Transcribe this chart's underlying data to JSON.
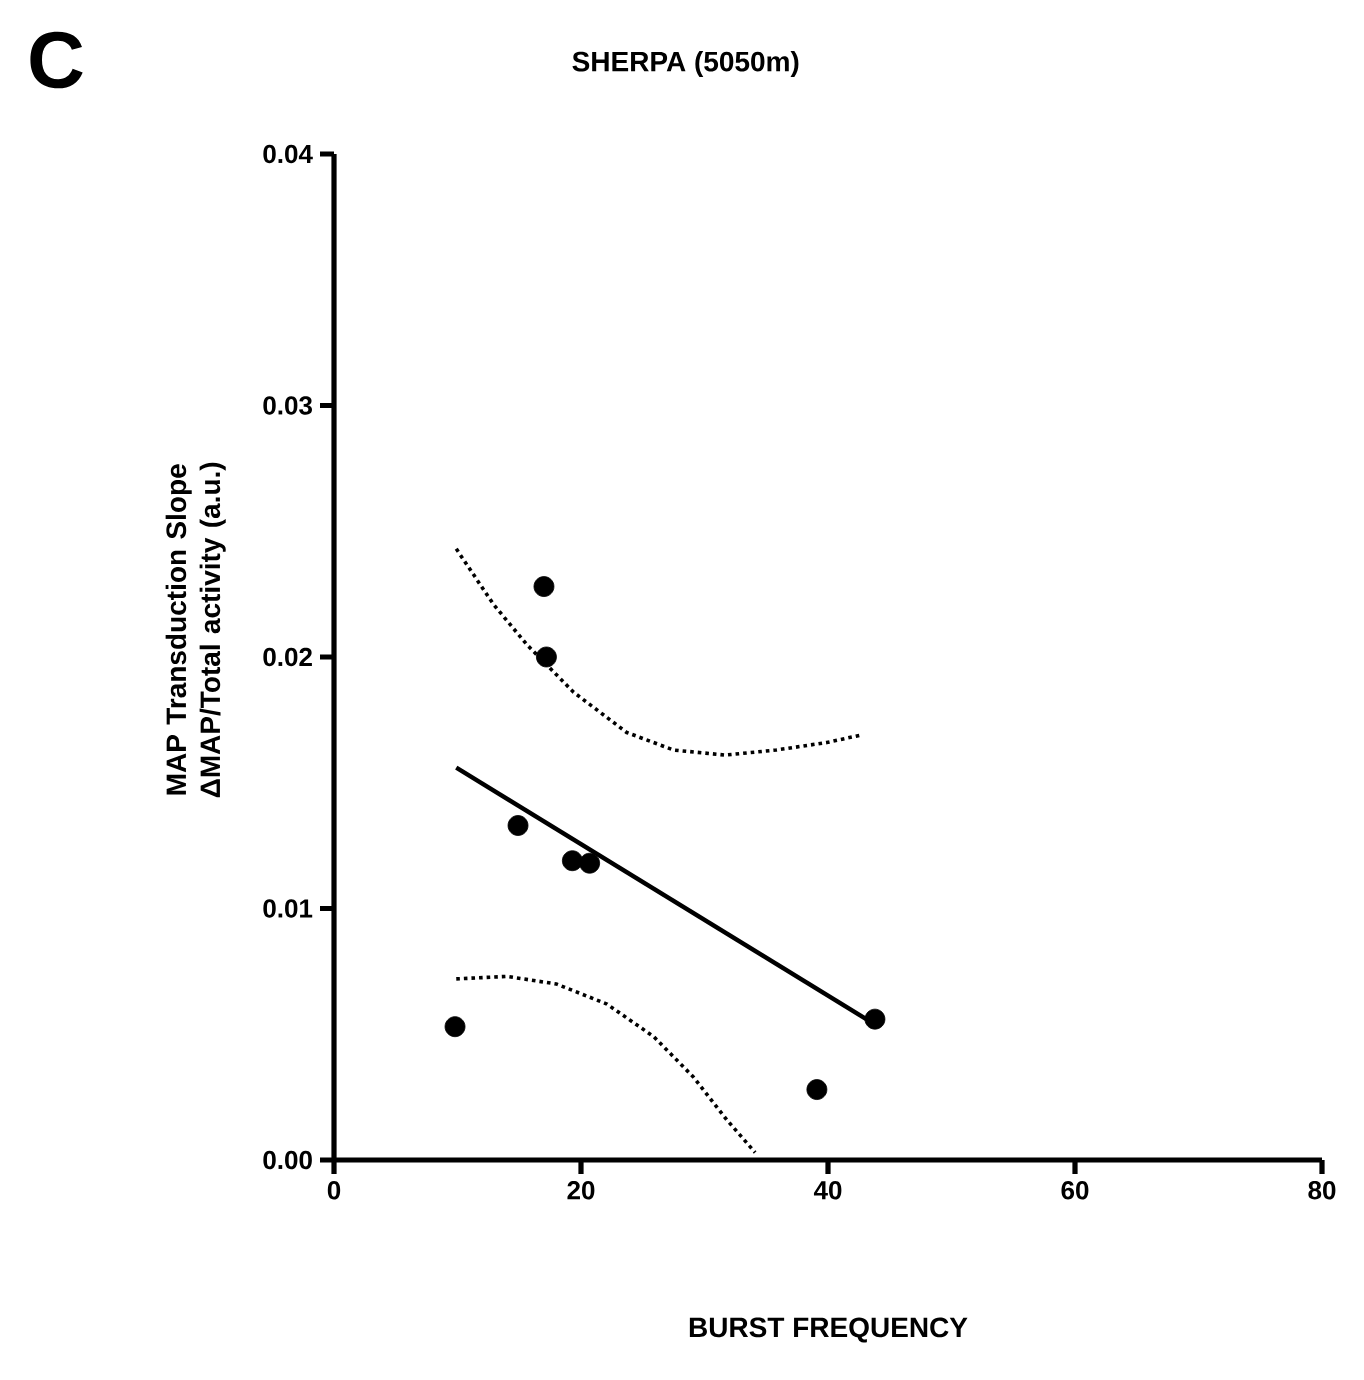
{
  "chart_data": {
    "type": "scatter",
    "title": "SHERPA (5050m)",
    "xlabel": "BURST FREQUENCY",
    "ylabel": "MAP Transduction Slope ΔMAP/Total activity (a.u.)",
    "annotations": [
      "C"
    ],
    "xlim": [
      0,
      80
    ],
    "ylim": [
      0,
      0.04
    ],
    "xticks": [
      0,
      20,
      40,
      60,
      80
    ],
    "yticks": [
      {
        "value": 0,
        "label": "0.00"
      },
      {
        "value": 0.01,
        "label": "0.01"
      },
      {
        "value": 0.02,
        "label": "0.02"
      },
      {
        "value": 0.03,
        "label": "0.03"
      },
      {
        "value": 0.04,
        "label": "0.04"
      }
    ],
    "grid": false,
    "series": [
      {
        "type": "scatter",
        "color": "#000000",
        "marker": "circle",
        "x": [
          9.8,
          14.9,
          17.0,
          17.2,
          19.3,
          20.7,
          39.1,
          43.8
        ],
        "values": [
          0.0053,
          0.0133,
          0.0228,
          0.02,
          0.0119,
          0.0118,
          0.0028,
          0.0056
        ]
      },
      {
        "type": "line",
        "color": "#000000",
        "line_style": "solid",
        "marker": "none",
        "x": [
          9.9,
          43.1
        ],
        "values": [
          0.0156,
          0.0056
        ]
      },
      {
        "type": "line",
        "color": "#000000",
        "line_style": "dotted",
        "marker": "none",
        "x": [
          9.9,
          12.9,
          15.6,
          19.4,
          23.7,
          27.5,
          31.7,
          35.8,
          39.9,
          42.7
        ],
        "values": [
          0.0243,
          0.0221,
          0.0205,
          0.0186,
          0.017,
          0.0163,
          0.0161,
          0.0163,
          0.0166,
          0.0169
        ]
      },
      {
        "type": "line",
        "color": "#000000",
        "line_style": "dotted",
        "marker": "none",
        "x": [
          9.9,
          14.0,
          18.0,
          22.1,
          25.9,
          29.1,
          31.8,
          34.1
        ],
        "values": [
          0.0072,
          0.0073,
          0.007,
          0.0062,
          0.0049,
          0.0033,
          0.0016,
          0.0003
        ]
      }
    ]
  }
}
